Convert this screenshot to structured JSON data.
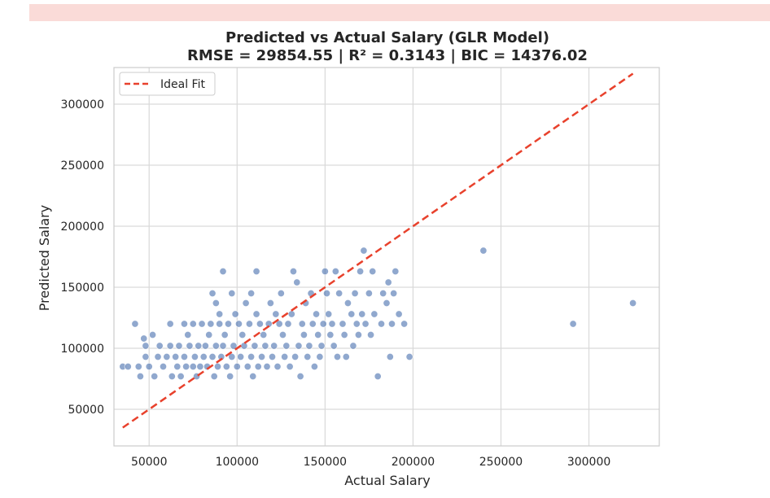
{
  "chart_data": {
    "type": "scatter",
    "title": "Predicted vs Actual Salary (GLR Model)",
    "subtitle": "RMSE = 29854.55 | R² = 0.3143 | BIC = 14376.02",
    "xlabel": "Actual Salary",
    "ylabel": "Predicted Salary",
    "xlim": [
      30000,
      340000
    ],
    "ylim": [
      20000,
      330000
    ],
    "xticks": [
      50000,
      100000,
      150000,
      200000,
      250000,
      300000
    ],
    "yticks": [
      50000,
      100000,
      150000,
      200000,
      250000,
      300000
    ],
    "xtick_labels": [
      "50000",
      "100000",
      "150000",
      "200000",
      "250000",
      "300000"
    ],
    "ytick_labels": [
      "50000",
      "100000",
      "150000",
      "200000",
      "250000",
      "300000"
    ],
    "grid": true,
    "legend": {
      "position": "top-left",
      "entries": [
        "Ideal Fit"
      ]
    },
    "ideal_fit": {
      "x": [
        35000,
        325000
      ],
      "y": [
        35000,
        325000
      ],
      "color": "#e8412c",
      "style": "dashed"
    },
    "point_color": "#4c72b0",
    "points": [
      [
        35000,
        85000
      ],
      [
        38000,
        85000
      ],
      [
        42000,
        120000
      ],
      [
        44000,
        85000
      ],
      [
        45000,
        77000
      ],
      [
        47000,
        108000
      ],
      [
        48000,
        93000
      ],
      [
        48000,
        102000
      ],
      [
        50000,
        85000
      ],
      [
        52000,
        111000
      ],
      [
        53000,
        77000
      ],
      [
        55000,
        93000
      ],
      [
        56000,
        102000
      ],
      [
        58000,
        85000
      ],
      [
        60000,
        93000
      ],
      [
        62000,
        102000
      ],
      [
        62000,
        120000
      ],
      [
        63000,
        77000
      ],
      [
        65000,
        93000
      ],
      [
        66000,
        85000
      ],
      [
        67000,
        102000
      ],
      [
        68000,
        77000
      ],
      [
        70000,
        93000
      ],
      [
        70000,
        120000
      ],
      [
        71000,
        85000
      ],
      [
        72000,
        111000
      ],
      [
        73000,
        102000
      ],
      [
        75000,
        120000
      ],
      [
        75000,
        85000
      ],
      [
        76000,
        93000
      ],
      [
        77000,
        77000
      ],
      [
        78000,
        102000
      ],
      [
        79000,
        85000
      ],
      [
        80000,
        120000
      ],
      [
        81000,
        93000
      ],
      [
        82000,
        102000
      ],
      [
        83000,
        85000
      ],
      [
        84000,
        111000
      ],
      [
        85000,
        120000
      ],
      [
        86000,
        93000
      ],
      [
        86000,
        145000
      ],
      [
        87000,
        77000
      ],
      [
        88000,
        102000
      ],
      [
        88000,
        137000
      ],
      [
        89000,
        85000
      ],
      [
        90000,
        128000
      ],
      [
        90000,
        120000
      ],
      [
        91000,
        93000
      ],
      [
        92000,
        102000
      ],
      [
        92000,
        163000
      ],
      [
        93000,
        111000
      ],
      [
        94000,
        85000
      ],
      [
        95000,
        120000
      ],
      [
        96000,
        77000
      ],
      [
        97000,
        93000
      ],
      [
        97000,
        145000
      ],
      [
        98000,
        102000
      ],
      [
        99000,
        128000
      ],
      [
        100000,
        85000
      ],
      [
        101000,
        120000
      ],
      [
        102000,
        93000
      ],
      [
        103000,
        111000
      ],
      [
        104000,
        102000
      ],
      [
        105000,
        137000
      ],
      [
        106000,
        85000
      ],
      [
        107000,
        120000
      ],
      [
        108000,
        93000
      ],
      [
        108000,
        145000
      ],
      [
        109000,
        77000
      ],
      [
        110000,
        102000
      ],
      [
        111000,
        128000
      ],
      [
        111000,
        163000
      ],
      [
        112000,
        85000
      ],
      [
        113000,
        120000
      ],
      [
        114000,
        93000
      ],
      [
        115000,
        111000
      ],
      [
        116000,
        102000
      ],
      [
        117000,
        85000
      ],
      [
        118000,
        120000
      ],
      [
        119000,
        137000
      ],
      [
        120000,
        93000
      ],
      [
        121000,
        102000
      ],
      [
        122000,
        128000
      ],
      [
        123000,
        85000
      ],
      [
        124000,
        120000
      ],
      [
        125000,
        145000
      ],
      [
        126000,
        111000
      ],
      [
        127000,
        93000
      ],
      [
        128000,
        102000
      ],
      [
        129000,
        120000
      ],
      [
        130000,
        85000
      ],
      [
        131000,
        128000
      ],
      [
        132000,
        163000
      ],
      [
        133000,
        93000
      ],
      [
        134000,
        154000
      ],
      [
        135000,
        102000
      ],
      [
        136000,
        77000
      ],
      [
        137000,
        120000
      ],
      [
        138000,
        111000
      ],
      [
        139000,
        137000
      ],
      [
        140000,
        93000
      ],
      [
        141000,
        102000
      ],
      [
        142000,
        145000
      ],
      [
        143000,
        120000
      ],
      [
        144000,
        85000
      ],
      [
        145000,
        128000
      ],
      [
        146000,
        111000
      ],
      [
        147000,
        93000
      ],
      [
        148000,
        102000
      ],
      [
        149000,
        120000
      ],
      [
        150000,
        163000
      ],
      [
        151000,
        145000
      ],
      [
        152000,
        128000
      ],
      [
        153000,
        111000
      ],
      [
        154000,
        120000
      ],
      [
        155000,
        102000
      ],
      [
        156000,
        163000
      ],
      [
        157000,
        93000
      ],
      [
        158000,
        145000
      ],
      [
        160000,
        120000
      ],
      [
        161000,
        111000
      ],
      [
        162000,
        93000
      ],
      [
        163000,
        137000
      ],
      [
        165000,
        128000
      ],
      [
        166000,
        102000
      ],
      [
        167000,
        145000
      ],
      [
        168000,
        120000
      ],
      [
        169000,
        111000
      ],
      [
        170000,
        163000
      ],
      [
        171000,
        128000
      ],
      [
        172000,
        180000
      ],
      [
        173000,
        120000
      ],
      [
        175000,
        145000
      ],
      [
        176000,
        111000
      ],
      [
        177000,
        163000
      ],
      [
        178000,
        128000
      ],
      [
        180000,
        77000
      ],
      [
        182000,
        120000
      ],
      [
        183000,
        145000
      ],
      [
        185000,
        137000
      ],
      [
        186000,
        154000
      ],
      [
        187000,
        93000
      ],
      [
        188000,
        120000
      ],
      [
        189000,
        145000
      ],
      [
        190000,
        163000
      ],
      [
        192000,
        128000
      ],
      [
        195000,
        120000
      ],
      [
        198000,
        93000
      ],
      [
        240000,
        180000
      ],
      [
        291000,
        120000
      ],
      [
        325000,
        137000
      ]
    ]
  }
}
